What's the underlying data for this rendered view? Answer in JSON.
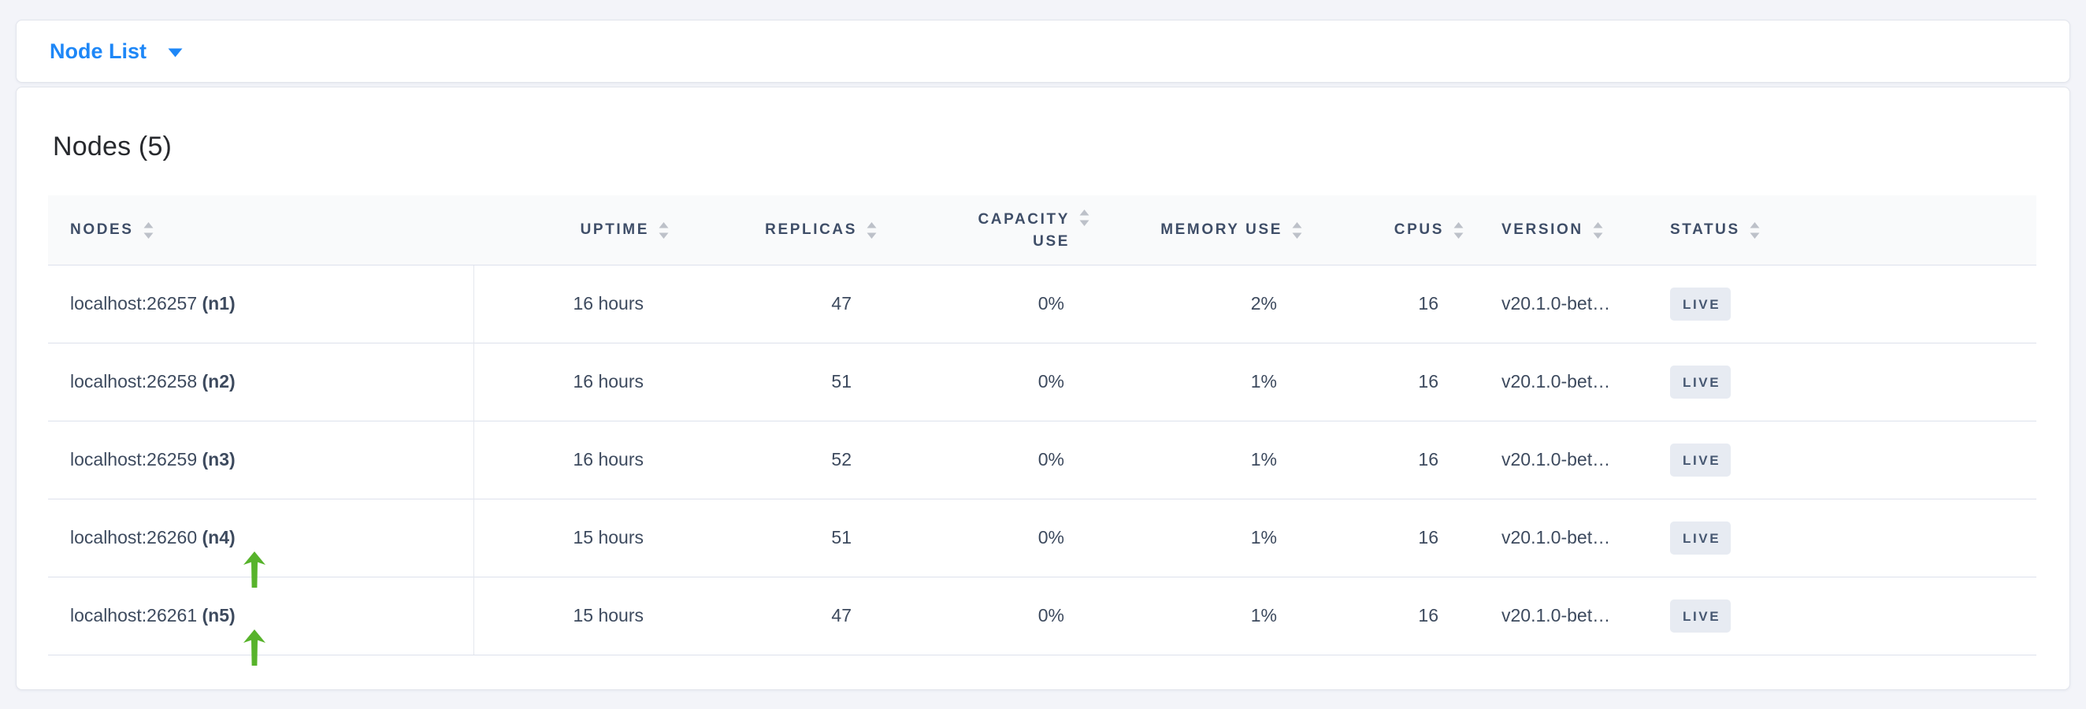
{
  "theme": {
    "page_bg": "#f3f4f9",
    "accent_blue": "#1e87f7",
    "header_text": "#3f4e68",
    "cell_text": "#3d4a5e",
    "badge_bg": "#e7ebf2",
    "badge_text": "#475872",
    "arrow_green": "#57b32b",
    "border": "#dde1ec",
    "card_border": "#e2e5ec",
    "header_bg": "#f9fafb",
    "sort_icon": "#bdc1c9",
    "title_color": "#27292d"
  },
  "toolbar": {
    "dropdown_label": "Node List",
    "dropdown_icon": "caret-down-icon"
  },
  "main": {
    "title": "Nodes (5)",
    "table": {
      "columns": [
        {
          "key": "nodes",
          "label": "NODES",
          "align": "left",
          "sortable": true
        },
        {
          "key": "uptime",
          "label": "UPTIME",
          "align": "right",
          "sortable": true
        },
        {
          "key": "replicas",
          "label": "REPLICAS",
          "align": "right",
          "sortable": true
        },
        {
          "key": "capacity_use",
          "label": "CAPACITY USE",
          "align": "right",
          "sortable": true
        },
        {
          "key": "memory_use",
          "label": "MEMORY USE",
          "align": "right",
          "sortable": true
        },
        {
          "key": "cpus",
          "label": "CPUS",
          "align": "right",
          "sortable": true
        },
        {
          "key": "version",
          "label": "VERSION",
          "align": "left",
          "sortable": true
        },
        {
          "key": "status",
          "label": "STATUS",
          "align": "left",
          "sortable": true
        }
      ],
      "rows": [
        {
          "address": "localhost:26257",
          "node_id": "(n1)",
          "uptime": "16 hours",
          "replicas": "47",
          "capacity_use": "0%",
          "memory_use": "2%",
          "cpus": "16",
          "version": "v20.1.0-bet…",
          "status": "LIVE",
          "annotated": false
        },
        {
          "address": "localhost:26258",
          "node_id": "(n2)",
          "uptime": "16 hours",
          "replicas": "51",
          "capacity_use": "0%",
          "memory_use": "1%",
          "cpus": "16",
          "version": "v20.1.0-bet…",
          "status": "LIVE",
          "annotated": false
        },
        {
          "address": "localhost:26259",
          "node_id": "(n3)",
          "uptime": "16 hours",
          "replicas": "52",
          "capacity_use": "0%",
          "memory_use": "1%",
          "cpus": "16",
          "version": "v20.1.0-bet…",
          "status": "LIVE",
          "annotated": false
        },
        {
          "address": "localhost:26260",
          "node_id": "(n4)",
          "uptime": "15 hours",
          "replicas": "51",
          "capacity_use": "0%",
          "memory_use": "1%",
          "cpus": "16",
          "version": "v20.1.0-bet…",
          "status": "LIVE",
          "annotated": true
        },
        {
          "address": "localhost:26261",
          "node_id": "(n5)",
          "uptime": "15 hours",
          "replicas": "47",
          "capacity_use": "0%",
          "memory_use": "1%",
          "cpus": "16",
          "version": "v20.1.0-bet…",
          "status": "LIVE",
          "annotated": true
        }
      ]
    }
  },
  "annotations": {
    "description": "Green upward arrows pointing at node 4 and node 5 labels",
    "arrow_targets": [
      "(n4)",
      "(n5)"
    ]
  }
}
